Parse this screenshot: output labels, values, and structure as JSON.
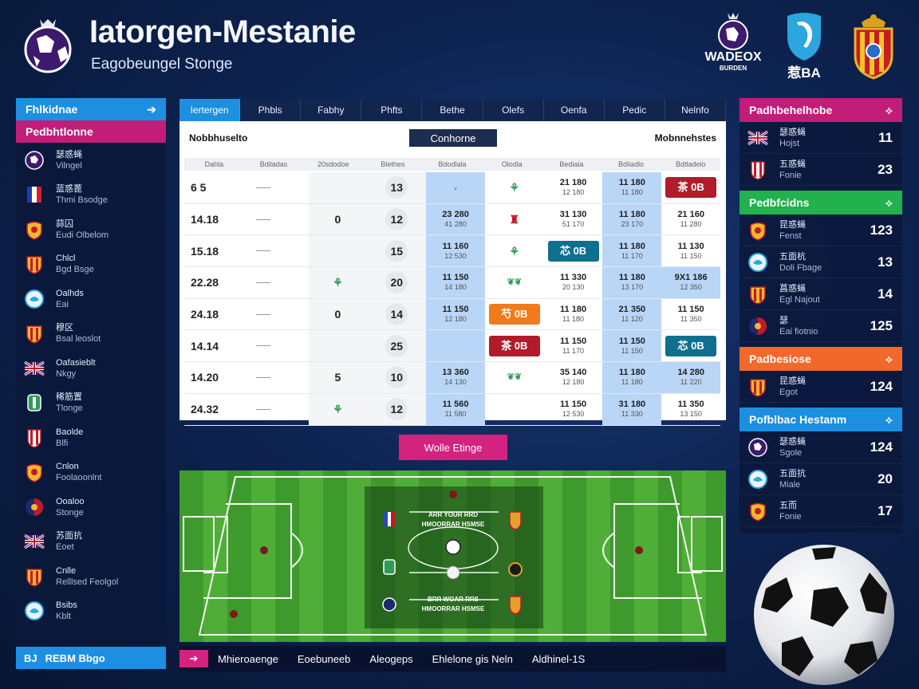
{
  "header": {
    "title": "Iatorgen-Mestanie",
    "subtitle": "Eagobeungel Stonge",
    "brand_left": "WADEOX",
    "brand_left_sub": "BURDEN",
    "brand_mid": "BA",
    "brand_mid_prefix": "惹"
  },
  "left_panel": {
    "bar1": "Fhlkidnae",
    "bar2": "Pedbhtlonne",
    "items": [
      {
        "l1": "瑟惑蝇",
        "l2": "Vilngel",
        "icon": "purple-ball-crest"
      },
      {
        "l1": "蓝惑蓖",
        "l2": "Thmi Bsodge",
        "icon": "french-flag-crest"
      },
      {
        "l1": "蒜囚",
        "l2": "Eudi Olbelom",
        "icon": "yellow-crest"
      },
      {
        "l1": "Chlcl",
        "l2": "Bgd Bsge",
        "icon": "red-yellow-crest"
      },
      {
        "l1": "Oalhds",
        "l2": "Eai",
        "icon": "white-blue-crest"
      },
      {
        "l1": "穆区",
        "l2": "Bsal leoslot",
        "icon": "red-yellow-crest"
      },
      {
        "l1": "Oafasieblt",
        "l2": "Nkgy",
        "icon": "uk-flag"
      },
      {
        "l1": "稀筋置",
        "l2": "Tlonge",
        "icon": "green-crest"
      },
      {
        "l1": "Baolde",
        "l2": "Blfi",
        "icon": "red-white-crest"
      },
      {
        "l1": "Cnlon",
        "l2": "Foolaoonlnt",
        "icon": "yellow-crest"
      },
      {
        "l1": "Ooaloo",
        "l2": "Stonge",
        "icon": "blue-red-crest"
      },
      {
        "l1": "苏面抗",
        "l2": "Eoet",
        "icon": "uk-flag"
      },
      {
        "l1": "Cnlle",
        "l2": "Relllsed Feolgol",
        "icon": "red-yellow-crest"
      },
      {
        "l1": "Bsibs",
        "l2": "Kblt",
        "icon": "white-blue-crest"
      }
    ],
    "footer_prefix": "BJ",
    "footer": "REBM Bbgo"
  },
  "tabs": [
    "Iertergen",
    "Phbls",
    "Fabhy",
    "Phfts",
    "Bethe",
    "Olefs",
    "Oenfa",
    "Pedic",
    "Nelnfo"
  ],
  "table": {
    "header_left": "Nobbhuselto",
    "header_mid": "Conhorne",
    "header_right": "Mobnnehstes",
    "columns": [
      "Dahla",
      "Bdiladas",
      "20sdodoe",
      "Blethes",
      "Bdodlala",
      "Olodla",
      "Bediala",
      "Bdiladlo",
      "Bdtladelo"
    ],
    "rows": [
      {
        "time": "6 5",
        "c1": "",
        "c2": "",
        "num": "13",
        "blue": [
          "",
          "ᵥ"
        ],
        "icon": "tree",
        "v1": [
          "21 180",
          "12 180"
        ],
        "v2": [
          "11 180",
          "11 180"
        ],
        "last_pill": "茶 0B",
        "last_color": "red"
      },
      {
        "time": "14.18",
        "c1": "",
        "c2": "0",
        "num": "12",
        "blue": [
          "23 280",
          "41 280"
        ],
        "icon": "tower",
        "v1": [
          "31 130",
          "51 170"
        ],
        "v2": [
          "11 180",
          "23 170"
        ],
        "last": [
          "21 160",
          "11 280"
        ]
      },
      {
        "time": "15.18",
        "c1": "",
        "c2": "",
        "num": "15",
        "blue": [
          "11 160",
          "12 530"
        ],
        "icon": "tree",
        "pill6": "芯 0B",
        "pill6_color": "teal",
        "v2": [
          "11 180",
          "11 170"
        ],
        "last": [
          "11 130",
          "11 150"
        ]
      },
      {
        "time": "22.28",
        "c1": "",
        "c2": "tree",
        "num": "20",
        "blue": [
          "11 150",
          "14 180"
        ],
        "icon": "decor",
        "v1": [
          "11 330",
          "20 130"
        ],
        "v2": [
          "11 180",
          "13 170"
        ],
        "last": [
          "9X1 186",
          "12 350"
        ],
        "last_blue": true
      },
      {
        "time": "24.18",
        "c1": "",
        "c2": "0",
        "num": "14",
        "blue": [
          "11 150",
          "12 180"
        ],
        "pill5": "芍 0B",
        "pill5_color": "orange",
        "v1": [
          "11 180",
          "11 180"
        ],
        "v2": [
          "21 350",
          "11 120"
        ],
        "last": [
          "11 150",
          "11 350"
        ]
      },
      {
        "time": "14.14",
        "c1": "",
        "c2": "",
        "num": "25",
        "blue": [
          "",
          ""
        ],
        "pill5": "茶 0B",
        "pill5_color": "red",
        "v1": [
          "11 150",
          "11 170"
        ],
        "v2": [
          "11 150",
          "11 150"
        ],
        "last_pill": "芯 0B",
        "last_color": "teal"
      },
      {
        "time": "14.20",
        "c1": "",
        "c2": "5",
        "num": "10",
        "blue": [
          "13 360",
          "14 130"
        ],
        "icon": "decor",
        "v1": [
          "35 140",
          "12 180"
        ],
        "v2": [
          "11 180",
          "11 180"
        ],
        "last": [
          "14 280",
          "11 220"
        ],
        "last_blue": true
      },
      {
        "time": "24.32",
        "c1": "",
        "c2": "tree",
        "num": "12",
        "blue": [
          "11 560",
          "11 580"
        ],
        "icon": "",
        "v1": [
          "11 150",
          "12 530"
        ],
        "v2": [
          "31 180",
          "11 330"
        ],
        "last": [
          "11 350",
          "13 150"
        ]
      }
    ]
  },
  "field_button": "Wolle Etinge",
  "field": {
    "top_label": "ARR YOUR RRD",
    "top_label2": "HMOORRAR HSMSE",
    "bottom_label": "BRR WOAR RRS",
    "bottom_label2": "HMOORRAR HSMSE"
  },
  "bottom_bar": {
    "arrow": "➔",
    "items": [
      "Mhieroaenge",
      "Eoebuneeb",
      "Aleogeps",
      "Ehlelone gis Neln",
      "Aldhinel-1S"
    ]
  },
  "right_panel": {
    "bar1": "Padhbehelhobe",
    "group1": [
      {
        "l1": "瑟惑蝇",
        "l2": "Hojst",
        "val": "11",
        "icon": "uk-flag"
      },
      {
        "l1": "五惑蝇",
        "l2": "Fonie",
        "val": "23",
        "icon": "red-white-crest"
      }
    ],
    "bar2": "Pedbfcidns",
    "group2": [
      {
        "l1": "昆惑蝇",
        "l2": "Fenst",
        "val": "123",
        "icon": "yellow-crest"
      },
      {
        "l1": "五面杭",
        "l2": "Doli Fbage",
        "val": "13",
        "icon": "white-blue-crest"
      },
      {
        "l1": "菖惑蝇",
        "l2": "Egl Najout",
        "val": "14",
        "icon": "red-yellow-crest"
      },
      {
        "l1": "瑟",
        "l2": "Eai fiotnio",
        "val": "125",
        "icon": "blue-red-crest"
      }
    ],
    "bar3": "Padbesiose",
    "group3": [
      {
        "l1": "昆惑蝇",
        "l2": "Egot",
        "val": "124",
        "icon": "red-yellow-crest"
      }
    ],
    "bar4": "Pofblbac Hestanm",
    "group4": [
      {
        "l1": "瑟惑蝇",
        "l2": "Sgole",
        "val": "124",
        "icon": "purple-ball-crest"
      },
      {
        "l1": "五面抗",
        "l2": "Miale",
        "val": "20",
        "icon": "white-blue-crest"
      },
      {
        "l1": "五而",
        "l2": "Fonie",
        "val": "17",
        "icon": "yellow-crest"
      }
    ]
  },
  "colors": {
    "accent_blue": "#1c8fe0",
    "accent_pink": "#d4237f",
    "accent_green": "#22b14c",
    "accent_orange": "#f0692a"
  }
}
